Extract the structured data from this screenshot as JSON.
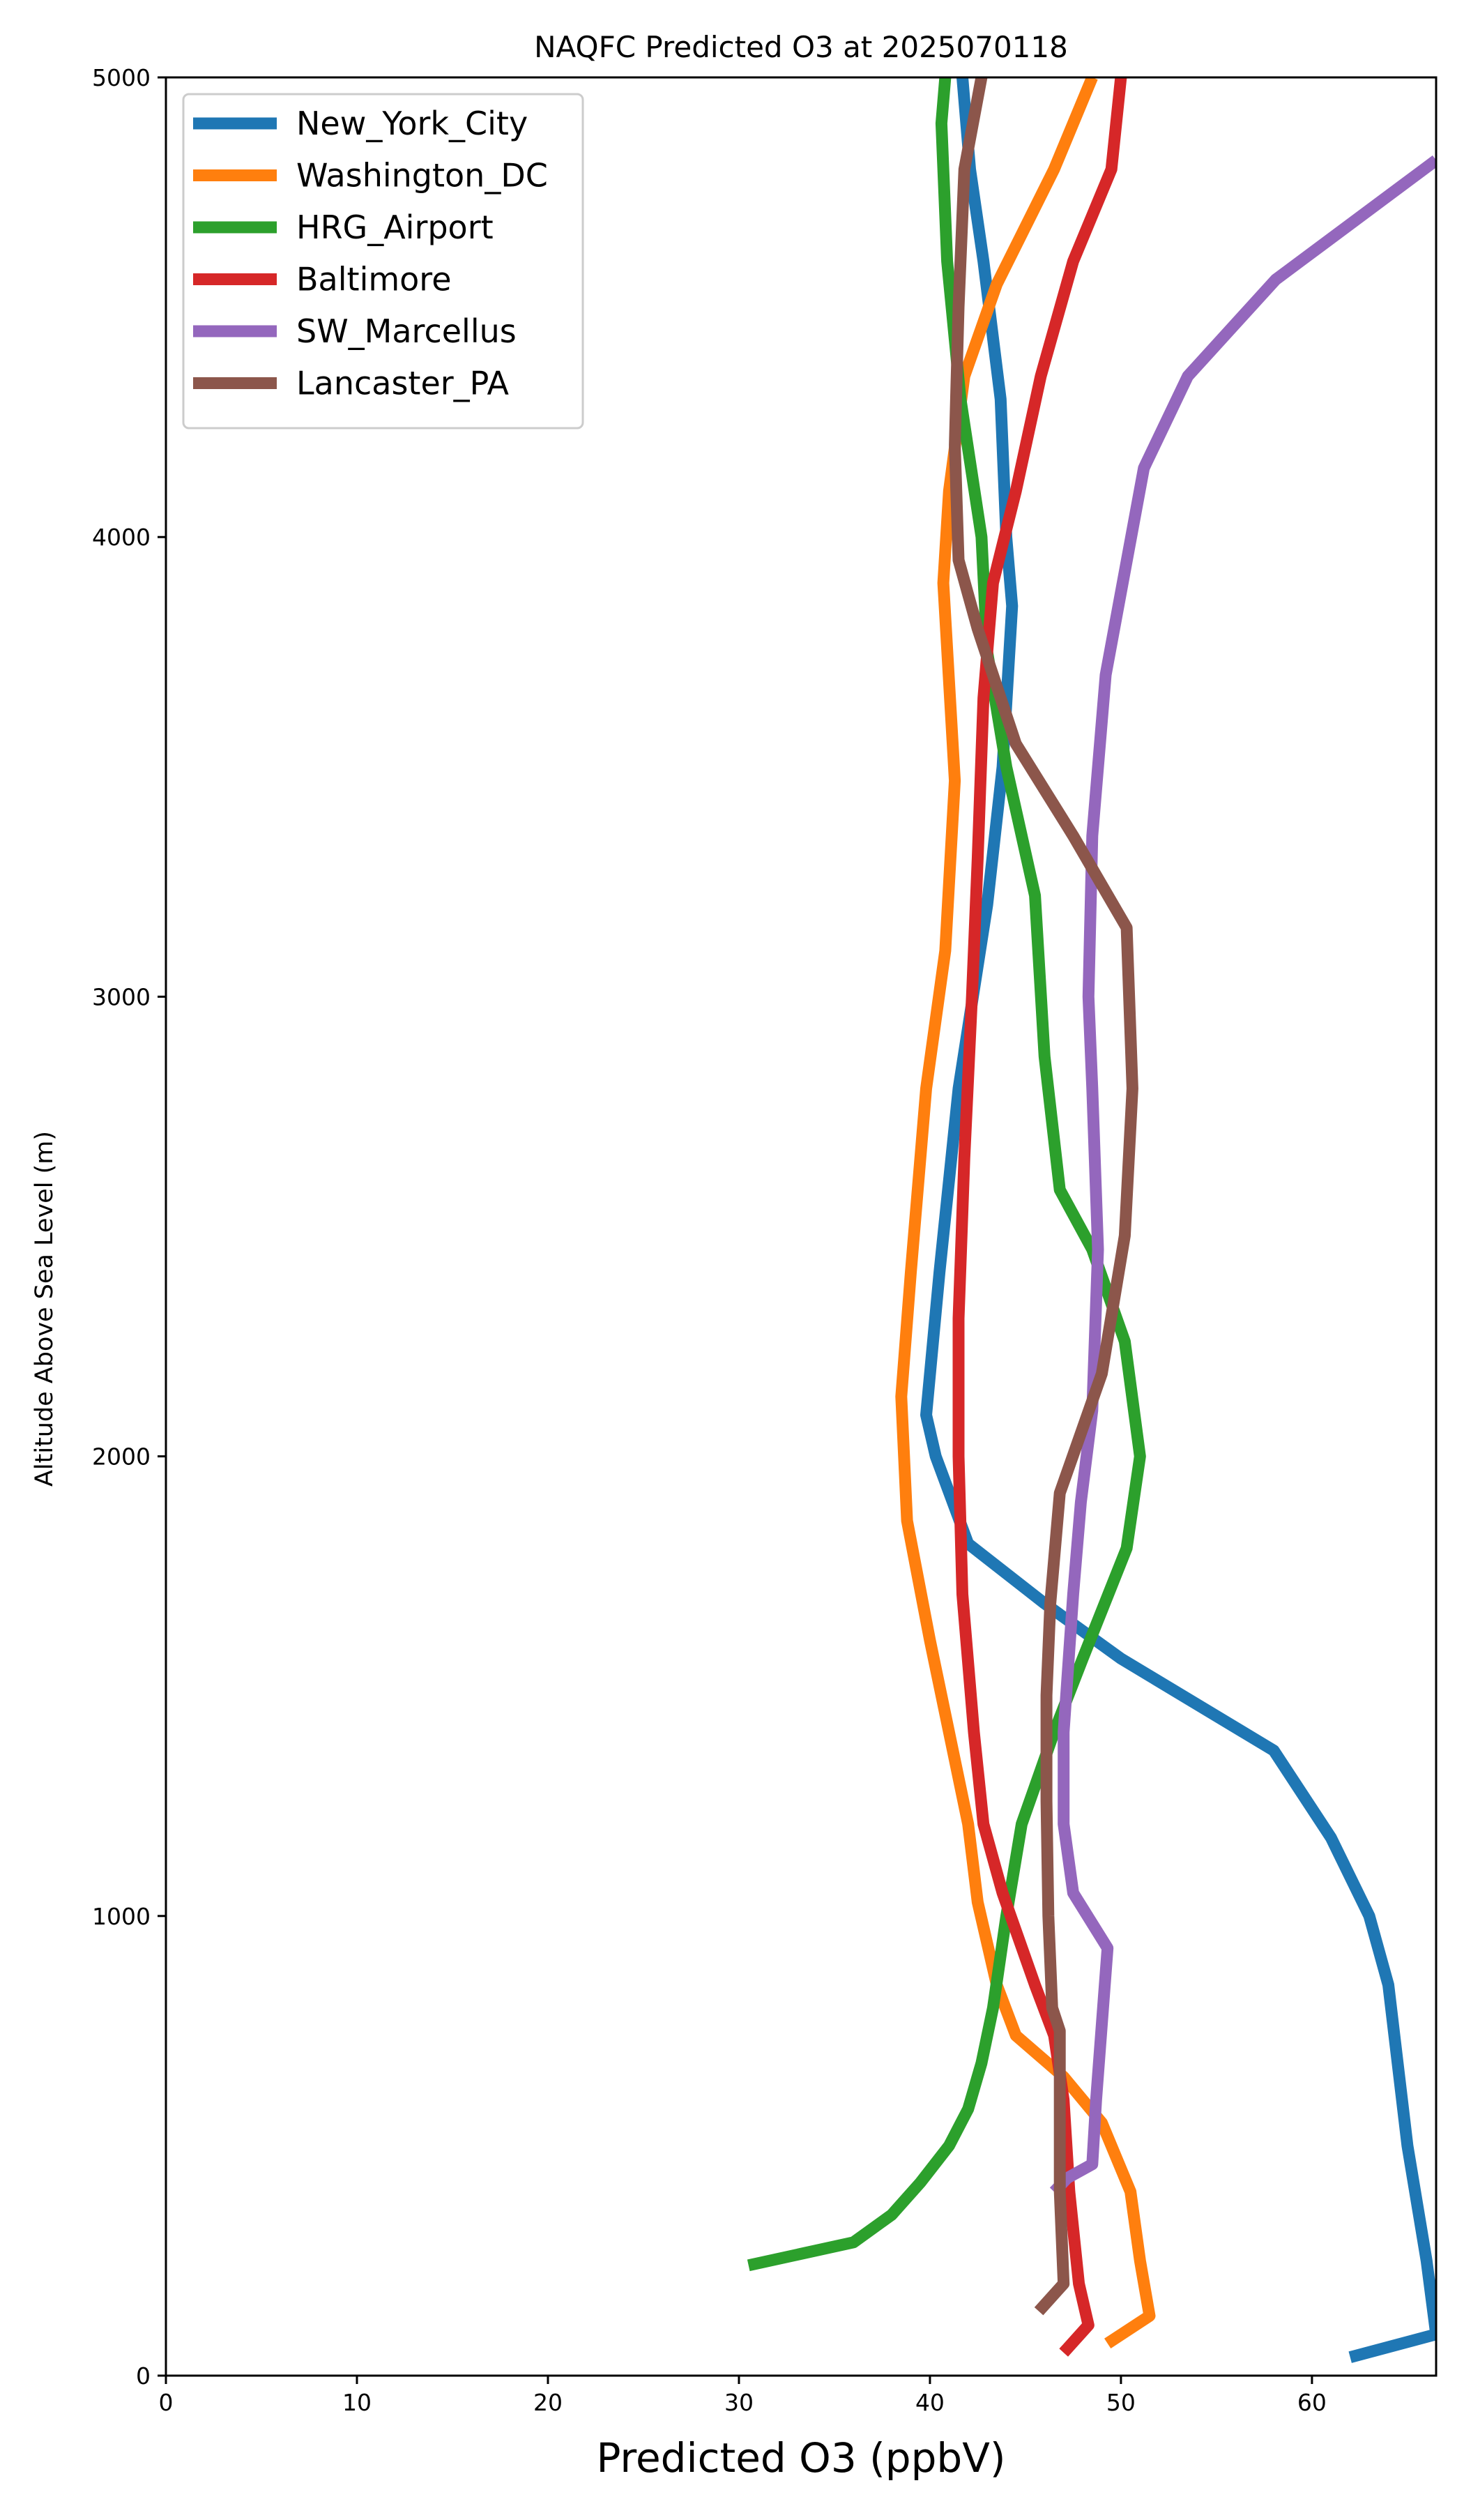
{
  "chart_data": {
    "type": "line",
    "title": "NAQFC Predicted O3 at 2025070118",
    "xlabel": "Predicted O3 (ppbV)",
    "ylabel": "Altitude Above Sea Level (m)",
    "xlim": [
      0,
      66.5
    ],
    "ylim": [
      0,
      5000
    ],
    "xticks": [
      0,
      10,
      20,
      30,
      40,
      50,
      60
    ],
    "yticks": [
      0,
      1000,
      2000,
      3000,
      4000,
      5000
    ],
    "grid": false,
    "legend_position": "top-left",
    "series": [
      {
        "name": "New_York_City",
        "color": "#1f77b4",
        "points": [
          [
            62,
            40
          ],
          [
            66.5,
            90
          ],
          [
            66,
            250
          ],
          [
            65,
            500
          ],
          [
            64,
            850
          ],
          [
            63,
            1000
          ],
          [
            61,
            1170
          ],
          [
            58,
            1360
          ],
          [
            50,
            1560
          ],
          [
            46,
            1680
          ],
          [
            42,
            1810
          ],
          [
            40.3,
            2000
          ],
          [
            39.8,
            2090
          ],
          [
            40.5,
            2400
          ],
          [
            41.5,
            2800
          ],
          [
            43,
            3200
          ],
          [
            43.8,
            3500
          ],
          [
            44.3,
            3850
          ],
          [
            44,
            4000
          ],
          [
            43.7,
            4300
          ],
          [
            42.8,
            4600
          ],
          [
            42.1,
            4800
          ],
          [
            41.7,
            5000
          ]
        ]
      },
      {
        "name": "Washington_DC",
        "color": "#ff7f0e",
        "points": [
          [
            49.3,
            70
          ],
          [
            51.5,
            130
          ],
          [
            51,
            250
          ],
          [
            50.5,
            400
          ],
          [
            49,
            550
          ],
          [
            47,
            650
          ],
          [
            44.5,
            740
          ],
          [
            43.5,
            850
          ],
          [
            42.5,
            1030
          ],
          [
            42,
            1200
          ],
          [
            41,
            1400
          ],
          [
            40,
            1600
          ],
          [
            38.8,
            1860
          ],
          [
            38.5,
            2130
          ],
          [
            39,
            2400
          ],
          [
            39.8,
            2800
          ],
          [
            40.8,
            3100
          ],
          [
            41.3,
            3470
          ],
          [
            40.7,
            3900
          ],
          [
            41,
            4100
          ],
          [
            41.8,
            4350
          ],
          [
            43.5,
            4550
          ],
          [
            46.5,
            4800
          ],
          [
            48.5,
            5000
          ]
        ]
      },
      {
        "name": "HRG_Airport",
        "color": "#2ca02c",
        "points": [
          [
            30.5,
            240
          ],
          [
            36,
            290
          ],
          [
            38,
            350
          ],
          [
            39.5,
            420
          ],
          [
            41,
            500
          ],
          [
            42,
            580
          ],
          [
            42.7,
            680
          ],
          [
            43.3,
            800
          ],
          [
            44,
            1000
          ],
          [
            44.8,
            1200
          ],
          [
            46.5,
            1400
          ],
          [
            48,
            1560
          ],
          [
            50.3,
            1800
          ],
          [
            51,
            2000
          ],
          [
            50.2,
            2250
          ],
          [
            48.5,
            2450
          ],
          [
            46.8,
            2580
          ],
          [
            46,
            2870
          ],
          [
            45.5,
            3220
          ],
          [
            44,
            3500
          ],
          [
            43,
            3750
          ],
          [
            42.7,
            4000
          ],
          [
            41.6,
            4300
          ],
          [
            40.9,
            4600
          ],
          [
            40.6,
            4900
          ],
          [
            40.8,
            5000
          ]
        ]
      },
      {
        "name": "Baltimore",
        "color": "#d62728",
        "points": [
          [
            47,
            50
          ],
          [
            48.3,
            110
          ],
          [
            47.8,
            200
          ],
          [
            47.3,
            400
          ],
          [
            47,
            600
          ],
          [
            46.5,
            740
          ],
          [
            45.5,
            850
          ],
          [
            43.8,
            1050
          ],
          [
            42.8,
            1200
          ],
          [
            42.3,
            1400
          ],
          [
            41.7,
            1700
          ],
          [
            41.5,
            2000
          ],
          [
            41.5,
            2300
          ],
          [
            41.8,
            2650
          ],
          [
            42.2,
            3000
          ],
          [
            42.5,
            3300
          ],
          [
            42.8,
            3650
          ],
          [
            43.3,
            3900
          ],
          [
            44.5,
            4100
          ],
          [
            45.8,
            4350
          ],
          [
            47.5,
            4600
          ],
          [
            49.5,
            4800
          ],
          [
            50,
            5000
          ]
        ]
      },
      {
        "name": "SW_Marcellus",
        "color": "#9467bd",
        "points": [
          [
            46.5,
            400
          ],
          [
            47.2,
            430
          ],
          [
            48.5,
            460
          ],
          [
            48.7,
            600
          ],
          [
            49.3,
            930
          ],
          [
            47.5,
            1050
          ],
          [
            47,
            1200
          ],
          [
            47,
            1400
          ],
          [
            47.5,
            1700
          ],
          [
            47.9,
            1900
          ],
          [
            48.5,
            2100
          ],
          [
            48.8,
            2450
          ],
          [
            48.5,
            2800
          ],
          [
            48.3,
            3000
          ],
          [
            48.5,
            3350
          ],
          [
            49.2,
            3700
          ],
          [
            51.2,
            4150
          ],
          [
            53.5,
            4350
          ],
          [
            58.1,
            4560
          ],
          [
            66.5,
            4820
          ]
        ]
      },
      {
        "name": "Lancaster_PA",
        "color": "#8c564b",
        "points": [
          [
            45.7,
            140
          ],
          [
            47,
            200
          ],
          [
            46.8,
            400
          ],
          [
            46.8,
            750
          ],
          [
            46.4,
            800
          ],
          [
            46.2,
            1000
          ],
          [
            46.1,
            1250
          ],
          [
            46.1,
            1480
          ],
          [
            46.3,
            1680
          ],
          [
            46.8,
            1920
          ],
          [
            49,
            2180
          ],
          [
            50.2,
            2480
          ],
          [
            50.6,
            2800
          ],
          [
            50.3,
            3150
          ],
          [
            47.5,
            3350
          ],
          [
            44.5,
            3550
          ],
          [
            42.5,
            3800
          ],
          [
            41.5,
            3950
          ],
          [
            41.3,
            4200
          ],
          [
            41.5,
            4500
          ],
          [
            41.8,
            4800
          ],
          [
            42.7,
            5000
          ]
        ]
      }
    ]
  }
}
